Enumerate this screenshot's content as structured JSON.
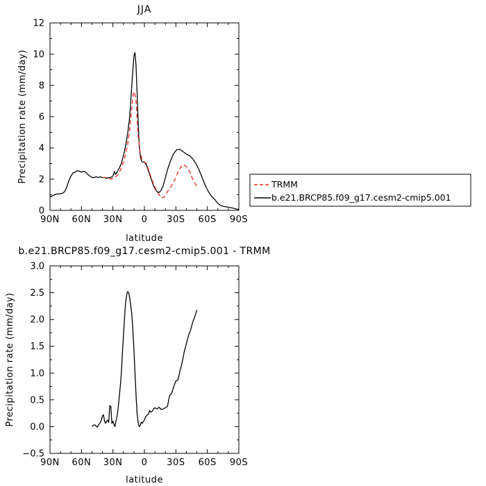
{
  "chart_data": [
    {
      "type": "line",
      "title": "JJA",
      "xlabel": "latitude",
      "ylabel": "Precipitation rate (mm/day)",
      "xlim": [
        90,
        -90
      ],
      "ylim": [
        0,
        12
      ],
      "x_ticks": [
        90,
        60,
        30,
        0,
        -30,
        -60,
        -90
      ],
      "x_tick_labels": [
        "90N",
        "60N",
        "30N",
        "0",
        "30S",
        "60S",
        "90S"
      ],
      "y_ticks": [
        0,
        2,
        4,
        6,
        8,
        10,
        12
      ],
      "y_tick_labels": [
        "0",
        "2",
        "4",
        "6",
        "8",
        "10",
        "12"
      ],
      "grid": false,
      "legend": {
        "placement": "right",
        "entries": [
          "TRMM",
          "b.e21.BRCP85.f09_g17.cesm2-cmip5.001"
        ]
      },
      "series": [
        {
          "name": "TRMM",
          "style": "dashed",
          "color": "#e8261e",
          "x": [
            40,
            36,
            32,
            28,
            25,
            22,
            19,
            16,
            14,
            12,
            10.5,
            9.5,
            8,
            7,
            6,
            4,
            2,
            0,
            -2,
            -5,
            -8,
            -12,
            -16,
            -19,
            -22,
            -26,
            -30,
            -33,
            -37,
            -40,
            -43,
            -46,
            -50
          ],
          "y": [
            2.1,
            2.1,
            2.0,
            2.1,
            2.3,
            2.7,
            3.3,
            4.2,
            5.2,
            6.6,
            7.5,
            7.6,
            7.0,
            6.0,
            4.8,
            3.7,
            3.2,
            3.1,
            3.0,
            2.4,
            1.8,
            1.2,
            0.8,
            0.85,
            1.2,
            1.6,
            2.1,
            2.6,
            2.95,
            2.8,
            2.5,
            2.0,
            1.5
          ]
        },
        {
          "name": "b.e21.BRCP85.f09_g17.cesm2-cmip5.001",
          "style": "solid",
          "color": "#000000",
          "x": [
            90,
            87,
            84,
            81,
            78,
            76,
            74,
            72,
            70,
            68,
            66,
            64,
            62,
            60,
            58,
            56,
            54,
            52,
            50,
            48,
            46,
            44,
            42,
            40,
            38,
            36,
            34,
            32,
            30,
            28.5,
            27.5,
            26,
            24,
            22,
            20,
            18,
            16,
            14,
            12.5,
            11,
            10,
            9,
            8,
            7,
            6,
            5,
            4,
            3,
            2,
            0,
            -2,
            -4,
            -6,
            -8,
            -10,
            -12,
            -14,
            -16,
            -18,
            -20,
            -22,
            -25,
            -28,
            -31,
            -34,
            -37,
            -40,
            -43,
            -46,
            -49,
            -52,
            -55,
            -58,
            -61,
            -64,
            -67,
            -70,
            -73,
            -76,
            -80,
            -84,
            -87,
            -90
          ],
          "y": [
            0.85,
            0.95,
            1.05,
            1.05,
            1.1,
            1.2,
            1.5,
            1.9,
            2.2,
            2.4,
            2.45,
            2.55,
            2.5,
            2.45,
            2.5,
            2.45,
            2.3,
            2.2,
            2.1,
            2.1,
            2.15,
            2.1,
            2.15,
            2.1,
            2.1,
            2.05,
            2.1,
            2.1,
            2.2,
            2.5,
            2.3,
            2.45,
            2.7,
            3.0,
            3.5,
            4.1,
            4.9,
            6.0,
            7.5,
            9.0,
            9.9,
            10.1,
            9.3,
            7.6,
            5.7,
            4.2,
            3.5,
            3.2,
            3.1,
            3.1,
            2.9,
            2.5,
            2.1,
            1.7,
            1.4,
            1.2,
            1.15,
            1.3,
            1.6,
            2.1,
            2.6,
            3.2,
            3.65,
            3.9,
            3.9,
            3.75,
            3.6,
            3.5,
            3.3,
            3.0,
            2.6,
            2.1,
            1.6,
            1.2,
            0.9,
            0.7,
            0.45,
            0.3,
            0.25,
            0.2,
            0.15,
            0.1,
            0.05
          ]
        }
      ]
    },
    {
      "type": "line",
      "title": "b.e21.BRCP85.f09_g17.cesm2-cmip5.001 - TRMM",
      "xlabel": "latitude",
      "ylabel": "Precipitation rate (mm/day)",
      "xlim": [
        90,
        -90
      ],
      "ylim": [
        -0.5,
        3.0
      ],
      "x_ticks": [
        90,
        60,
        30,
        0,
        -30,
        -60,
        -90
      ],
      "x_tick_labels": [
        "90N",
        "60N",
        "30N",
        "0",
        "30S",
        "60S",
        "90S"
      ],
      "y_ticks": [
        -0.5,
        0,
        0.5,
        1.0,
        1.5,
        2.0,
        2.5,
        3.0
      ],
      "y_tick_labels": [
        "−0.5",
        "0.0",
        "0.5",
        "1.0",
        "1.5",
        "2.0",
        "2.5",
        "3.0"
      ],
      "grid": false,
      "series": [
        {
          "style": "solid",
          "color": "#000000",
          "x": [
            50,
            49,
            48,
            47,
            46,
            45,
            44,
            43,
            42,
            41,
            40,
            39,
            38,
            37,
            36,
            35,
            34,
            33,
            32,
            31,
            30,
            29,
            28,
            27,
            26,
            25,
            24,
            23,
            22,
            21,
            20,
            19,
            18,
            17,
            16,
            15,
            14,
            13,
            12,
            11,
            10,
            9,
            8,
            7,
            6,
            5,
            4,
            3,
            2,
            1,
            0,
            -1,
            -2,
            -3,
            -4,
            -5,
            -6,
            -7,
            -8,
            -9,
            -10,
            -12,
            -14,
            -16,
            -18,
            -20,
            -22,
            -24,
            -26,
            -28,
            -30,
            -32,
            -34,
            -35,
            -36,
            -38,
            -40,
            -42,
            -44,
            -46,
            -48,
            -50
          ],
          "y": [
            0.0,
            0.02,
            0.03,
            0.03,
            0.01,
            -0.01,
            0.02,
            0.05,
            0.08,
            0.12,
            0.2,
            0.22,
            0.1,
            0.06,
            0.1,
            0.12,
            0.08,
            0.39,
            0.38,
            0.06,
            0.1,
            0.04,
            0.0,
            0.12,
            0.2,
            0.35,
            0.55,
            0.75,
            1.0,
            1.35,
            1.7,
            2.0,
            2.3,
            2.45,
            2.52,
            2.5,
            2.4,
            2.25,
            2.1,
            1.8,
            1.45,
            1.0,
            0.6,
            0.25,
            0.08,
            0.0,
            0.02,
            0.08,
            0.06,
            0.1,
            0.12,
            0.18,
            0.2,
            0.22,
            0.24,
            0.3,
            0.27,
            0.28,
            0.3,
            0.34,
            0.35,
            0.33,
            0.36,
            0.32,
            0.33,
            0.35,
            0.38,
            0.58,
            0.62,
            0.75,
            0.85,
            0.87,
            1.05,
            1.12,
            1.2,
            1.4,
            1.55,
            1.7,
            1.8,
            1.95,
            2.05,
            2.18
          ]
        }
      ]
    }
  ]
}
